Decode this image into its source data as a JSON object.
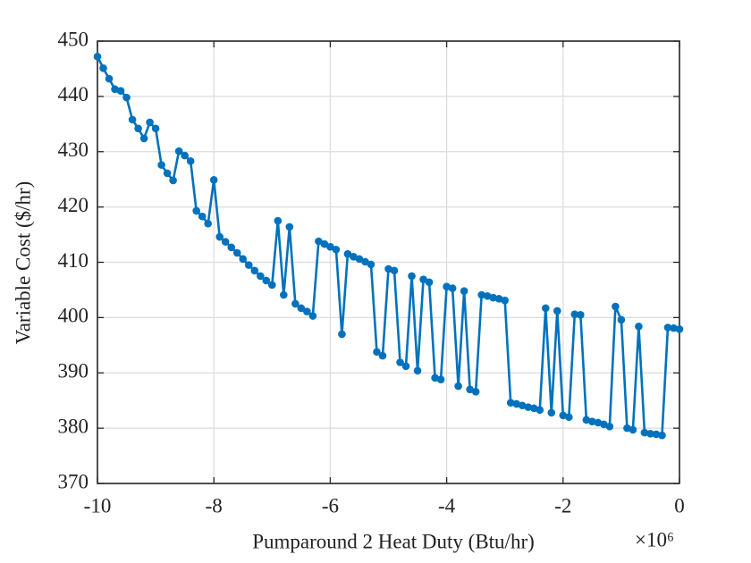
{
  "chart_data": {
    "type": "line",
    "xlabel": "Pumparound 2 Heat Duty (Btu/hr)",
    "x_multiplier": "×10⁶",
    "ylabel": "Variable Cost ($/hr)",
    "x": [
      -10,
      -9.9,
      -9.8,
      -9.7,
      -9.6,
      -9.5,
      -9.4,
      -9.3,
      -9.2,
      -9.1,
      -9,
      -8.9,
      -8.8,
      -8.7,
      -8.6,
      -8.5,
      -8.4,
      -8.3,
      -8.2,
      -8.1,
      -8,
      -7.9,
      -7.8,
      -7.7,
      -7.6,
      -7.5,
      -7.4,
      -7.3,
      -7.2,
      -7.1,
      -7,
      -6.9,
      -6.8,
      -6.7,
      -6.6,
      -6.5,
      -6.4,
      -6.3,
      -6.2,
      -6.1,
      -6,
      -5.9,
      -5.8,
      -5.7,
      -5.6,
      -5.5,
      -5.4,
      -5.3,
      -5.2,
      -5.1,
      -5,
      -4.9,
      -4.8,
      -4.7,
      -4.6,
      -4.5,
      -4.4,
      -4.3,
      -4.2,
      -4.1,
      -4,
      -3.9,
      -3.8,
      -3.7,
      -3.6,
      -3.5,
      -3.4,
      -3.3,
      -3.2,
      -3.1,
      -3,
      -2.9,
      -2.8,
      -2.7,
      -2.6,
      -2.5,
      -2.4,
      -2.3,
      -2.2,
      -2.1,
      -2,
      -1.9,
      -1.8,
      -1.7,
      -1.6,
      -1.5,
      -1.4,
      -1.3,
      -1.2,
      -1.1,
      -1,
      -0.9,
      -0.8,
      -0.7,
      -0.6,
      -0.5,
      -0.4,
      -0.3,
      -0.2,
      -0.1,
      0
    ],
    "series": [
      {
        "color": "#0072BD",
        "values": [
          447.2,
          445.1,
          443.2,
          441.3,
          441.0,
          439.8,
          435.8,
          434.2,
          432.4,
          435.3,
          434.2,
          427.6,
          426.1,
          424.8,
          430.1,
          429.3,
          428.3,
          419.3,
          418.3,
          417.0,
          424.9,
          414.6,
          413.7,
          412.7,
          411.7,
          410.6,
          409.5,
          408.5,
          407.5,
          406.7,
          405.9,
          417.5,
          404.1,
          416.4,
          402.5,
          401.7,
          401.1,
          400.3,
          413.8,
          413.3,
          412.8,
          412.3,
          397.0,
          411.5,
          411.0,
          410.6,
          410.1,
          409.6,
          393.8,
          393.1,
          408.8,
          408.5,
          391.9,
          391.2,
          407.5,
          390.4,
          406.9,
          406.4,
          389.1,
          388.8,
          405.6,
          405.3,
          387.6,
          404.8,
          387.0,
          386.6,
          404.1,
          403.9,
          403.6,
          403.4,
          403.1,
          384.6,
          384.4,
          384.1,
          383.8,
          383.6,
          383.3,
          401.7,
          382.8,
          401.2,
          382.3,
          382.0,
          400.6,
          400.5,
          381.5,
          381.2,
          381.0,
          380.7,
          380.3,
          402.0,
          399.6,
          380.0,
          379.7,
          398.4,
          379.2,
          379.0,
          378.9,
          378.7,
          398.2,
          398.1,
          397.9
        ]
      }
    ],
    "xlim": [
      -10,
      0
    ],
    "xticks": [
      -10,
      -8,
      -6,
      -4,
      -2,
      0
    ],
    "ylim": [
      370,
      450
    ],
    "yticks": [
      370,
      380,
      390,
      400,
      410,
      420,
      430,
      440,
      450
    ],
    "grid": true
  }
}
